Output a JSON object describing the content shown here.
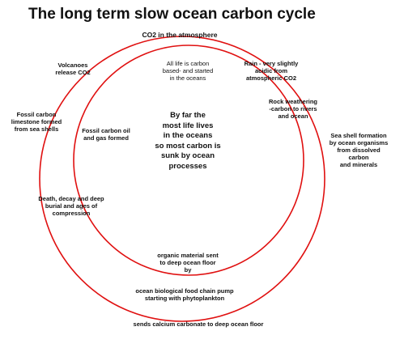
{
  "title": "The long term slow ocean carbon cycle",
  "labels": [
    {
      "lines": [
        "CO2 in the atmosphere"
      ]
    },
    {
      "lines": [
        "Volcanoes",
        "release CO2"
      ]
    },
    {
      "lines": [
        "All life is carbon",
        "based- and started",
        "in the oceans"
      ]
    },
    {
      "lines": [
        "Rain - very slightly",
        "acidic from",
        "atmospheric  CO2"
      ]
    },
    {
      "lines": [
        "Rock weathering",
        "-carbon to rivers",
        "and ocean"
      ]
    },
    {
      "lines": [
        "Fossil carbon",
        "limestone formed",
        "from sea shells"
      ]
    },
    {
      "lines": [
        "Fossil carbon oil",
        "and gas formed"
      ]
    },
    {
      "lines": [
        "By far the",
        "most life lives",
        "in the oceans",
        "so most carbon is",
        "sunk by ocean",
        "processes"
      ]
    },
    {
      "lines": [
        "Sea  shell formation",
        "by ocean organisms",
        "from dissolved",
        "carbon",
        "and minerals"
      ]
    },
    {
      "lines": [
        "Death, decay and deep",
        "burial and ages of",
        "compression"
      ]
    },
    {
      "lines": [
        "organic material sent",
        "to deep ocean floor",
        "by"
      ]
    },
    {
      "lines": [
        "ocean biological food chain pump",
        "starting with  phytoplankton"
      ]
    },
    {
      "lines": [
        "sends calcium carbonate to deep ocean floor"
      ]
    }
  ]
}
